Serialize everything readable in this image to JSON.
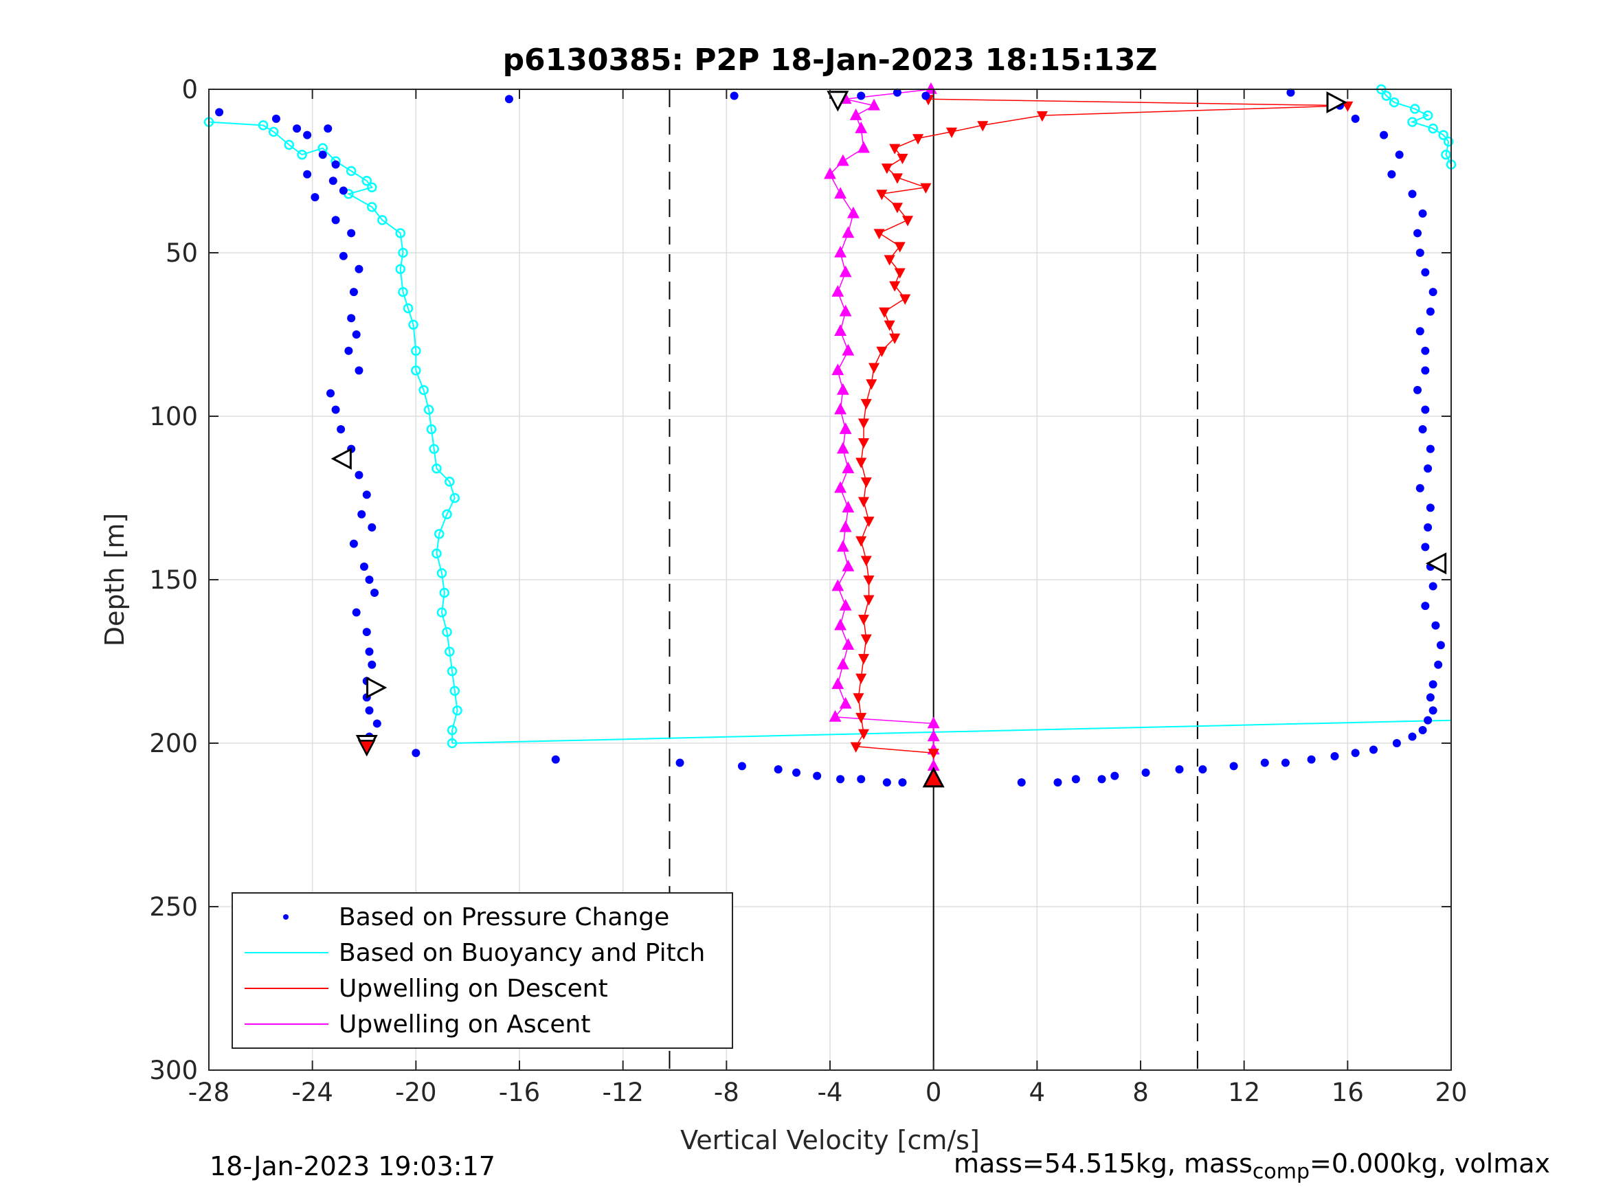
{
  "chart_data": {
    "type": "scatter",
    "title": "p6130385: P2P 18-Jan-2023 18:15:13Z",
    "xlabel": "Vertical Velocity [cm/s]",
    "ylabel": "Depth [m]",
    "xlim": [
      -28,
      20
    ],
    "ylim": [
      300,
      0
    ],
    "y_reversed": true,
    "xticks": [
      -28,
      -24,
      -20,
      -16,
      -12,
      -8,
      -4,
      0,
      4,
      8,
      12,
      16,
      20
    ],
    "yticks": [
      0,
      50,
      100,
      150,
      200,
      250,
      300
    ],
    "grid": true,
    "legend": "bottom-left",
    "reference_lines": {
      "dashed_x": [
        -10.2,
        10.2
      ],
      "solid_x": [
        0
      ]
    },
    "series": [
      {
        "name": "Based on Pressure Change",
        "color": "#0000ff",
        "style": "dots",
        "descent": [
          [
            -27.6,
            7
          ],
          [
            -25.4,
            9
          ],
          [
            -24.6,
            12
          ],
          [
            -24.2,
            14
          ],
          [
            -23.4,
            12
          ],
          [
            -23.6,
            20
          ],
          [
            -23.1,
            23
          ],
          [
            -23.2,
            28
          ],
          [
            -24.2,
            26
          ],
          [
            -23.9,
            33
          ],
          [
            -22.8,
            31
          ],
          [
            -23.1,
            40
          ],
          [
            -22.5,
            44
          ],
          [
            -22.8,
            51
          ],
          [
            -22.2,
            55
          ],
          [
            -22.4,
            62
          ],
          [
            -22.5,
            70
          ],
          [
            -22.3,
            75
          ],
          [
            -22.6,
            80
          ],
          [
            -22.2,
            86
          ],
          [
            -23.3,
            93
          ],
          [
            -23.1,
            98
          ],
          [
            -22.9,
            104
          ],
          [
            -22.5,
            110
          ],
          [
            -22.8,
            113
          ],
          [
            -22.2,
            118
          ],
          [
            -21.9,
            124
          ],
          [
            -22.1,
            130
          ],
          [
            -21.7,
            134
          ],
          [
            -22.4,
            139
          ],
          [
            -22.0,
            146
          ],
          [
            -21.8,
            150
          ],
          [
            -21.6,
            154
          ],
          [
            -22.3,
            160
          ],
          [
            -21.9,
            166
          ],
          [
            -21.8,
            172
          ],
          [
            -21.7,
            176
          ],
          [
            -21.9,
            181
          ],
          [
            -21.9,
            186
          ],
          [
            -21.8,
            190
          ],
          [
            -21.5,
            194
          ],
          [
            -21.8,
            198
          ],
          [
            -20.0,
            203
          ],
          [
            -14.6,
            205
          ],
          [
            -9.8,
            206
          ],
          [
            -7.4,
            207
          ],
          [
            -6.0,
            208
          ],
          [
            -5.3,
            209
          ],
          [
            -4.5,
            210
          ],
          [
            -3.6,
            211
          ],
          [
            -2.8,
            211
          ],
          [
            -1.8,
            212
          ],
          [
            -1.2,
            212
          ]
        ],
        "ascent": [
          [
            3.4,
            212
          ],
          [
            4.8,
            212
          ],
          [
            5.5,
            211
          ],
          [
            6.5,
            211
          ],
          [
            7.0,
            210
          ],
          [
            8.2,
            209
          ],
          [
            9.5,
            208
          ],
          [
            10.4,
            208
          ],
          [
            11.6,
            207
          ],
          [
            12.8,
            206
          ],
          [
            13.6,
            206
          ],
          [
            14.6,
            205
          ],
          [
            15.5,
            204
          ],
          [
            16.3,
            203
          ],
          [
            17.0,
            202
          ],
          [
            17.9,
            200
          ],
          [
            18.5,
            198
          ],
          [
            18.9,
            196
          ],
          [
            19.1,
            193
          ],
          [
            19.3,
            190
          ],
          [
            19.2,
            186
          ],
          [
            19.3,
            182
          ],
          [
            19.5,
            176
          ],
          [
            19.6,
            170
          ],
          [
            19.4,
            164
          ],
          [
            19.0,
            158
          ],
          [
            19.3,
            152
          ],
          [
            19.2,
            146
          ],
          [
            19.0,
            140
          ],
          [
            19.1,
            134
          ],
          [
            19.2,
            128
          ],
          [
            18.8,
            122
          ],
          [
            19.1,
            116
          ],
          [
            19.2,
            110
          ],
          [
            18.9,
            104
          ],
          [
            19.0,
            98
          ],
          [
            18.7,
            92
          ],
          [
            19.0,
            86
          ],
          [
            19.0,
            80
          ],
          [
            18.8,
            74
          ],
          [
            19.2,
            68
          ],
          [
            19.3,
            62
          ],
          [
            19.0,
            56
          ],
          [
            18.8,
            50
          ],
          [
            18.7,
            44
          ],
          [
            18.9,
            38
          ],
          [
            18.5,
            32
          ],
          [
            17.7,
            26
          ],
          [
            18.0,
            20
          ],
          [
            17.4,
            14
          ],
          [
            16.3,
            9
          ],
          [
            15.7,
            5
          ],
          [
            13.8,
            1
          ]
        ],
        "surface": [
          [
            -16.4,
            3
          ],
          [
            -7.7,
            2
          ],
          [
            -2.8,
            2
          ],
          [
            -1.4,
            1
          ],
          [
            -0.3,
            2
          ]
        ]
      },
      {
        "name": "Based on Buoyancy and Pitch",
        "color": "#00ffff",
        "style": "line-circles",
        "descent": [
          [
            -28.0,
            10
          ],
          [
            -25.9,
            11
          ],
          [
            -25.5,
            13
          ],
          [
            -24.9,
            17
          ],
          [
            -24.4,
            20
          ],
          [
            -23.6,
            18
          ],
          [
            -23.1,
            22
          ],
          [
            -22.5,
            25
          ],
          [
            -21.9,
            28
          ],
          [
            -21.7,
            30
          ],
          [
            -22.6,
            32
          ],
          [
            -21.7,
            36
          ],
          [
            -21.3,
            40
          ],
          [
            -20.6,
            44
          ],
          [
            -20.5,
            50
          ],
          [
            -20.6,
            55
          ],
          [
            -20.5,
            62
          ],
          [
            -20.3,
            67
          ],
          [
            -20.1,
            72
          ],
          [
            -20.0,
            80
          ],
          [
            -20.0,
            86
          ],
          [
            -19.7,
            92
          ],
          [
            -19.5,
            98
          ],
          [
            -19.4,
            104
          ],
          [
            -19.3,
            110
          ],
          [
            -19.2,
            116
          ],
          [
            -18.7,
            120
          ],
          [
            -18.5,
            125
          ],
          [
            -18.8,
            130
          ],
          [
            -19.1,
            136
          ],
          [
            -19.2,
            142
          ],
          [
            -19.0,
            148
          ],
          [
            -18.9,
            154
          ],
          [
            -19.0,
            160
          ],
          [
            -18.8,
            166
          ],
          [
            -18.7,
            172
          ],
          [
            -18.6,
            178
          ],
          [
            -18.5,
            184
          ],
          [
            -18.4,
            190
          ],
          [
            -18.6,
            196
          ],
          [
            -18.6,
            200
          ]
        ],
        "crossover": [
          [
            -18.6,
            200
          ],
          [
            20.0,
            193
          ]
        ],
        "ascent": [
          [
            17.3,
            0
          ],
          [
            17.5,
            2
          ],
          [
            17.8,
            4
          ],
          [
            18.6,
            6
          ],
          [
            19.1,
            8
          ],
          [
            18.5,
            10
          ],
          [
            19.3,
            12
          ],
          [
            19.7,
            14
          ],
          [
            19.9,
            16
          ],
          [
            19.8,
            20
          ],
          [
            20.0,
            23
          ]
        ]
      },
      {
        "name": "Upwelling on Descent",
        "color": "#ff0000",
        "style": "line-triangles-down",
        "values": [
          [
            -0.2,
            3
          ],
          [
            16.0,
            5
          ],
          [
            4.2,
            8
          ],
          [
            1.9,
            11
          ],
          [
            0.7,
            13
          ],
          [
            -0.6,
            15
          ],
          [
            -1.5,
            18
          ],
          [
            -1.2,
            21
          ],
          [
            -1.8,
            24
          ],
          [
            -1.4,
            27
          ],
          [
            -0.3,
            30
          ],
          [
            -2.0,
            32
          ],
          [
            -1.4,
            36
          ],
          [
            -1.0,
            40
          ],
          [
            -2.1,
            44
          ],
          [
            -1.3,
            48
          ],
          [
            -1.7,
            52
          ],
          [
            -1.3,
            56
          ],
          [
            -1.5,
            60
          ],
          [
            -1.1,
            64
          ],
          [
            -1.9,
            68
          ],
          [
            -1.7,
            72
          ],
          [
            -1.5,
            76
          ],
          [
            -2.0,
            80
          ],
          [
            -2.3,
            85
          ],
          [
            -2.4,
            90
          ],
          [
            -2.6,
            96
          ],
          [
            -2.7,
            102
          ],
          [
            -2.7,
            108
          ],
          [
            -2.8,
            114
          ],
          [
            -2.6,
            120
          ],
          [
            -2.7,
            126
          ],
          [
            -2.5,
            132
          ],
          [
            -2.8,
            138
          ],
          [
            -2.6,
            144
          ],
          [
            -2.5,
            150
          ],
          [
            -2.5,
            156
          ],
          [
            -2.7,
            162
          ],
          [
            -2.6,
            168
          ],
          [
            -2.7,
            174
          ],
          [
            -2.8,
            180
          ],
          [
            -2.9,
            186
          ],
          [
            -2.8,
            192
          ],
          [
            -2.7,
            197
          ],
          [
            -3.0,
            201
          ],
          [
            0.0,
            203
          ]
        ],
        "marker": [
          -21.9,
          201
        ]
      },
      {
        "name": "Upwelling on Ascent",
        "color": "#ff00ff",
        "style": "line-triangles-up",
        "values": [
          [
            0.0,
            212
          ],
          [
            0.0,
            207
          ],
          [
            0.0,
            202
          ],
          [
            0.0,
            198
          ],
          [
            0.0,
            194
          ],
          [
            -3.8,
            192
          ],
          [
            -3.4,
            188
          ],
          [
            -3.7,
            182
          ],
          [
            -3.5,
            176
          ],
          [
            -3.3,
            170
          ],
          [
            -3.6,
            164
          ],
          [
            -3.4,
            158
          ],
          [
            -3.7,
            152
          ],
          [
            -3.3,
            146
          ],
          [
            -3.5,
            140
          ],
          [
            -3.4,
            134
          ],
          [
            -3.3,
            128
          ],
          [
            -3.6,
            122
          ],
          [
            -3.3,
            116
          ],
          [
            -3.5,
            110
          ],
          [
            -3.4,
            104
          ],
          [
            -3.6,
            98
          ],
          [
            -3.5,
            92
          ],
          [
            -3.7,
            86
          ],
          [
            -3.3,
            80
          ],
          [
            -3.6,
            74
          ],
          [
            -3.4,
            68
          ],
          [
            -3.7,
            62
          ],
          [
            -3.4,
            56
          ],
          [
            -3.6,
            50
          ],
          [
            -3.3,
            44
          ],
          [
            -3.1,
            38
          ],
          [
            -3.6,
            32
          ],
          [
            -4.0,
            26
          ],
          [
            -3.5,
            22
          ],
          [
            -2.7,
            18
          ],
          [
            -2.8,
            12
          ],
          [
            -3.0,
            8
          ],
          [
            -2.3,
            5
          ],
          [
            -3.4,
            3
          ],
          [
            -0.1,
            0
          ]
        ],
        "marker": [
          0.0,
          211
        ]
      }
    ],
    "markers": {
      "open_triangles": [
        [
          -3.7,
          3
        ],
        [
          15.5,
          4
        ],
        [
          -22.8,
          113
        ],
        [
          19.5,
          145
        ],
        [
          -21.6,
          183
        ],
        [
          -21.9,
          200
        ]
      ]
    }
  },
  "footer": {
    "timestamp": "18-Jan-2023 19:03:17",
    "mass_text": "mass=54.515kg, mass",
    "mass_sub": "comp",
    "mass_rest": "=0.000kg, volmax"
  }
}
